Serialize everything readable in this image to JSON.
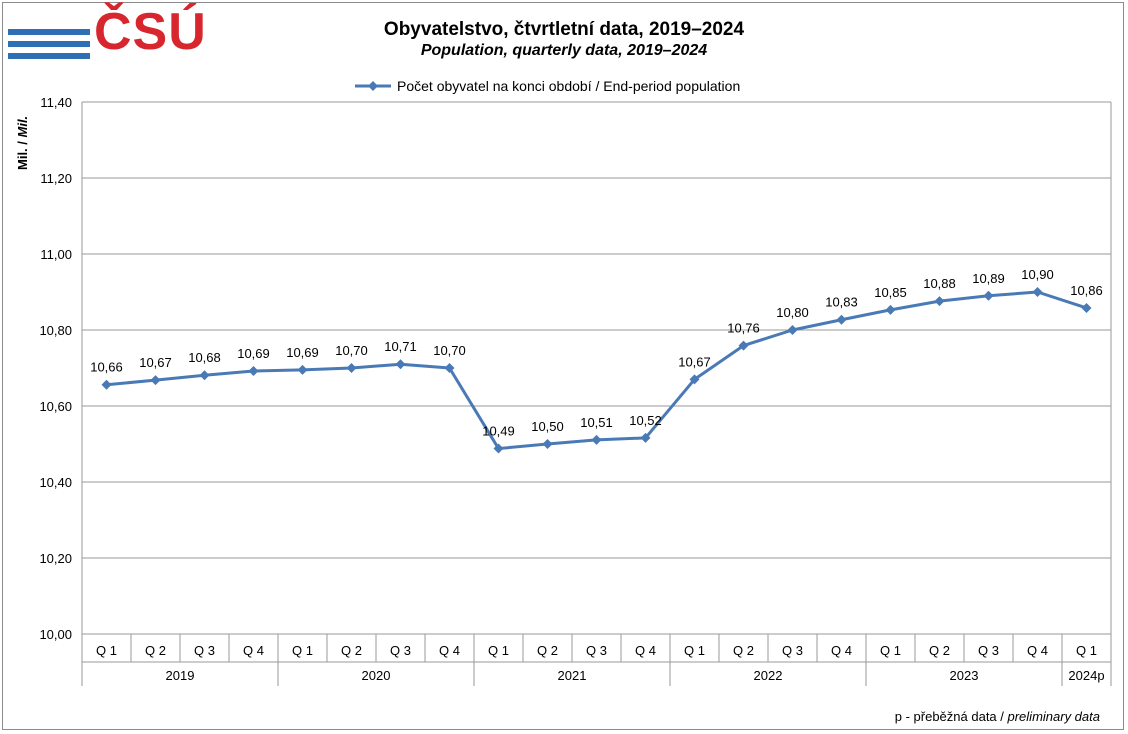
{
  "logo": {
    "text": "ČSÚ"
  },
  "colors": {
    "series": "#4a7ab6",
    "grid": "#9a9a9a",
    "brand_red": "#d8262e",
    "brand_blue": "#2e6fb6"
  },
  "chart_data": {
    "type": "line",
    "title": "Obyvatelstvo, čtvrtletní data, 2019–2024",
    "subtitle": "Population, quarterly data, 2019–2024",
    "ylabel_main": "Mil. / ",
    "ylabel_italic": "Mil.",
    "ylim": [
      10.0,
      11.4
    ],
    "yticks": [
      "10,00",
      "10,20",
      "10,40",
      "10,60",
      "10,80",
      "11,00",
      "11,20",
      "11,40"
    ],
    "ytick_values": [
      10.0,
      10.2,
      10.4,
      10.6,
      10.8,
      11.0,
      11.2,
      11.4
    ],
    "grid": true,
    "legend_position": "top-center",
    "categories": [
      "Q 1",
      "Q 2",
      "Q 3",
      "Q 4",
      "Q 1",
      "Q 2",
      "Q 3",
      "Q 4",
      "Q 1",
      "Q 2",
      "Q 3",
      "Q 4",
      "Q 1",
      "Q 2",
      "Q 3",
      "Q 4",
      "Q 1",
      "Q 2",
      "Q 3",
      "Q 4",
      "Q 1"
    ],
    "groups": [
      {
        "label": "2019",
        "span": 4
      },
      {
        "label": "2020",
        "span": 4
      },
      {
        "label": "2021",
        "span": 4
      },
      {
        "label": "2022",
        "span": 4
      },
      {
        "label": "2023",
        "span": 4
      },
      {
        "label": "2024p",
        "span": 1
      }
    ],
    "series": [
      {
        "name": "Počet obyvatel na konci období / End-period population",
        "values": [
          10.656,
          10.668,
          10.681,
          10.692,
          10.695,
          10.7,
          10.71,
          10.7,
          10.488,
          10.5,
          10.511,
          10.516,
          10.67,
          10.759,
          10.8,
          10.827,
          10.853,
          10.876,
          10.89,
          10.9,
          10.858
        ],
        "labels": [
          "10,66",
          "10,67",
          "10,68",
          "10,69",
          "10,69",
          "10,70",
          "10,71",
          "10,70",
          "10,49",
          "10,50",
          "10,51",
          "10,52",
          "10,67",
          "10,76",
          "10,80",
          "10,83",
          "10,85",
          "10,88",
          "10,89",
          "10,90",
          "10,86"
        ]
      }
    ]
  },
  "note": {
    "main": "p - přeběžná data / ",
    "italic": "preliminary data"
  }
}
